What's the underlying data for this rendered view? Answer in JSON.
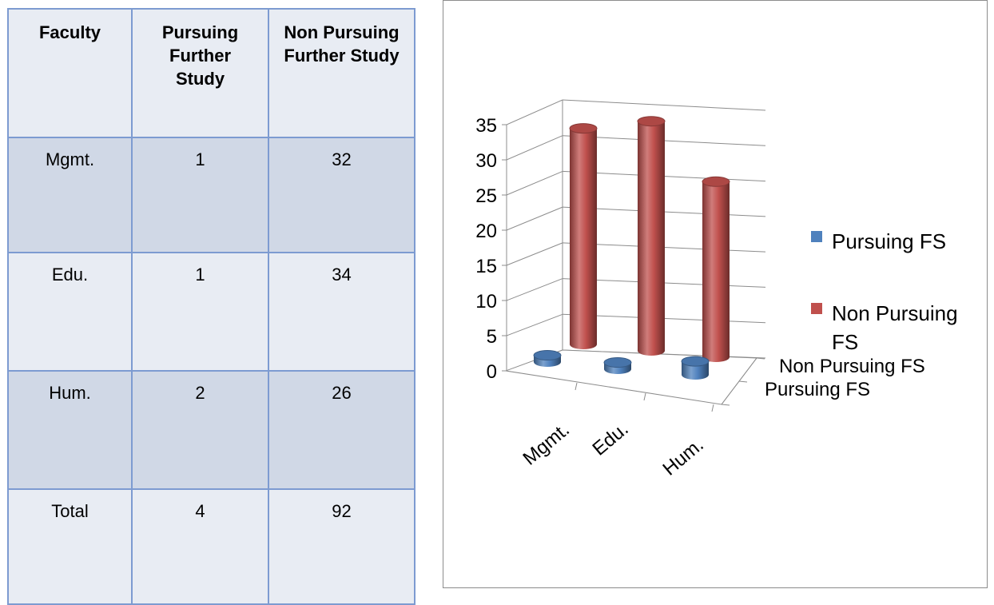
{
  "table": {
    "headers": [
      "Faculty",
      "Pursuing Further Study",
      "Non Pursuing Further Study"
    ],
    "header_lines": [
      [
        "Faculty"
      ],
      [
        "Pursuing",
        "Further",
        "Study"
      ],
      [
        "Non Pursuing",
        "Further Study"
      ]
    ],
    "rows": [
      [
        "Mgmt.",
        "1",
        "32"
      ],
      [
        "Edu.",
        "1",
        "34"
      ],
      [
        "Hum.",
        "2",
        "26"
      ],
      [
        "Total",
        "4",
        "92"
      ]
    ]
  },
  "chart_data": {
    "type": "bar",
    "variant": "3d-cylinder",
    "categories": [
      "Mgmt.",
      "Edu.",
      "Hum."
    ],
    "series": [
      {
        "name": "Pursuing FS",
        "values": [
          1,
          1,
          2
        ],
        "color": "#4f81bd"
      },
      {
        "name": "Non Pursuing FS",
        "values": [
          32,
          34,
          26
        ],
        "color": "#c0504d"
      }
    ],
    "ylim": [
      0,
      35
    ],
    "yticks": [
      "0",
      "5",
      "10",
      "15",
      "20",
      "25",
      "30",
      "35"
    ],
    "depth_labels": [
      "Non Pursuing FS",
      "Pursuing FS"
    ],
    "legend": {
      "placement": "right",
      "entries": [
        {
          "lines": [
            "Pursuing FS"
          ],
          "color": "#4f81bd"
        },
        {
          "lines": [
            "Non Pursuing",
            "FS"
          ],
          "color": "#c0504d"
        }
      ]
    },
    "grid": true
  }
}
